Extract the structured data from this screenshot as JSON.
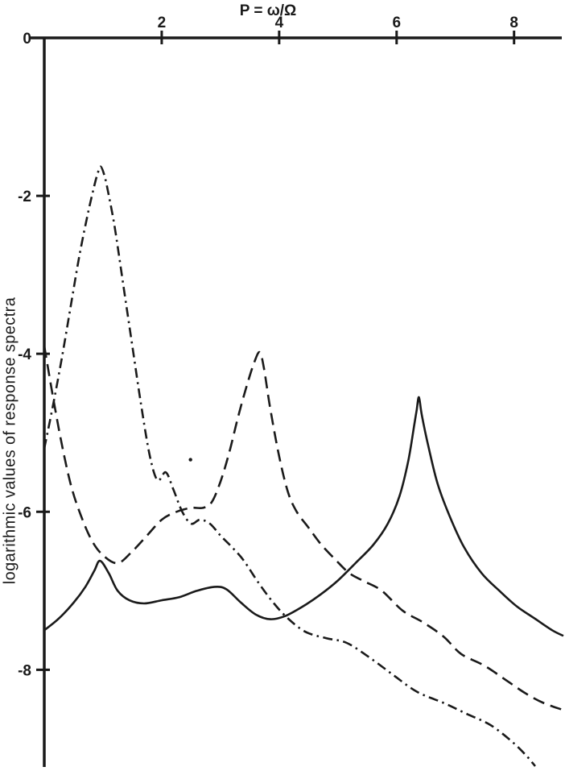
{
  "figure": {
    "background": "#ffffff",
    "ink_color": "#1a1a1a"
  },
  "chart_data": {
    "type": "line",
    "title": "",
    "xlabel": "P = ω/Ω",
    "ylabel": "logarithmic values of response spectra",
    "xlim": [
      0,
      8.84
    ],
    "ylim": [
      0,
      -9.21
    ],
    "x_ticks": [
      2,
      4,
      6,
      8
    ],
    "y_ticks": [
      -2,
      -4,
      -6,
      -8
    ],
    "origin_label": "0",
    "grid": false,
    "legend": "none",
    "series": [
      {
        "name": "solid-curve",
        "style": "solid",
        "points": [
          [
            0,
            -7.5
          ],
          [
            0.25,
            -7.35
          ],
          [
            0.5,
            -7.15
          ],
          [
            0.7,
            -6.95
          ],
          [
            0.85,
            -6.75
          ],
          [
            0.95,
            -6.62
          ],
          [
            1.1,
            -6.78
          ],
          [
            1.25,
            -7.0
          ],
          [
            1.45,
            -7.12
          ],
          [
            1.7,
            -7.16
          ],
          [
            2.0,
            -7.12
          ],
          [
            2.3,
            -7.08
          ],
          [
            2.6,
            -7.0
          ],
          [
            2.9,
            -6.95
          ],
          [
            3.1,
            -6.98
          ],
          [
            3.35,
            -7.15
          ],
          [
            3.6,
            -7.3
          ],
          [
            3.85,
            -7.36
          ],
          [
            4.1,
            -7.32
          ],
          [
            4.4,
            -7.2
          ],
          [
            4.7,
            -7.05
          ],
          [
            5.0,
            -6.87
          ],
          [
            5.3,
            -6.65
          ],
          [
            5.6,
            -6.42
          ],
          [
            5.85,
            -6.15
          ],
          [
            6.05,
            -5.8
          ],
          [
            6.2,
            -5.35
          ],
          [
            6.3,
            -4.9
          ],
          [
            6.34,
            -4.72
          ],
          [
            6.38,
            -4.55
          ],
          [
            6.43,
            -4.78
          ],
          [
            6.55,
            -5.2
          ],
          [
            6.7,
            -5.65
          ],
          [
            6.9,
            -6.05
          ],
          [
            7.15,
            -6.45
          ],
          [
            7.45,
            -6.78
          ],
          [
            7.75,
            -7.0
          ],
          [
            8.05,
            -7.2
          ],
          [
            8.35,
            -7.35
          ],
          [
            8.65,
            -7.5
          ],
          [
            8.84,
            -7.57
          ]
        ]
      },
      {
        "name": "dashed-curve",
        "style": "dashed",
        "points": [
          [
            0,
            -3.9
          ],
          [
            0.15,
            -4.55
          ],
          [
            0.3,
            -5.15
          ],
          [
            0.45,
            -5.65
          ],
          [
            0.6,
            -6.0
          ],
          [
            0.8,
            -6.35
          ],
          [
            1.0,
            -6.55
          ],
          [
            1.25,
            -6.65
          ],
          [
            1.5,
            -6.5
          ],
          [
            1.75,
            -6.3
          ],
          [
            2.0,
            -6.1
          ],
          [
            2.25,
            -6.0
          ],
          [
            2.5,
            -5.95
          ],
          [
            2.7,
            -5.95
          ],
          [
            2.85,
            -5.88
          ],
          [
            3.0,
            -5.62
          ],
          [
            3.15,
            -5.25
          ],
          [
            3.3,
            -4.8
          ],
          [
            3.45,
            -4.4
          ],
          [
            3.58,
            -4.1
          ],
          [
            3.67,
            -3.98
          ],
          [
            3.74,
            -4.18
          ],
          [
            3.85,
            -4.7
          ],
          [
            4.0,
            -5.3
          ],
          [
            4.15,
            -5.75
          ],
          [
            4.3,
            -6.0
          ],
          [
            4.5,
            -6.2
          ],
          [
            4.7,
            -6.4
          ],
          [
            4.95,
            -6.6
          ],
          [
            5.2,
            -6.78
          ],
          [
            5.45,
            -6.88
          ],
          [
            5.75,
            -7.0
          ],
          [
            6.1,
            -7.25
          ],
          [
            6.45,
            -7.4
          ],
          [
            6.8,
            -7.58
          ],
          [
            7.1,
            -7.8
          ],
          [
            7.5,
            -7.95
          ],
          [
            7.9,
            -8.15
          ],
          [
            8.2,
            -8.3
          ],
          [
            8.5,
            -8.42
          ],
          [
            8.8,
            -8.5
          ]
        ]
      },
      {
        "name": "dash-dot-curve",
        "style": "dash-dot",
        "points": [
          [
            0,
            -5.2
          ],
          [
            0.15,
            -4.65
          ],
          [
            0.3,
            -4.05
          ],
          [
            0.45,
            -3.4
          ],
          [
            0.6,
            -2.75
          ],
          [
            0.75,
            -2.2
          ],
          [
            0.85,
            -1.88
          ],
          [
            0.9,
            -1.74
          ],
          [
            0.96,
            -1.63
          ],
          [
            1.03,
            -1.76
          ],
          [
            1.1,
            -2.0
          ],
          [
            1.2,
            -2.4
          ],
          [
            1.35,
            -3.15
          ],
          [
            1.5,
            -3.9
          ],
          [
            1.65,
            -4.65
          ],
          [
            1.8,
            -5.3
          ],
          [
            1.93,
            -5.6
          ],
          [
            2.07,
            -5.5
          ],
          [
            2.2,
            -5.72
          ],
          [
            2.35,
            -6.0
          ],
          [
            2.5,
            -6.15
          ],
          [
            2.65,
            -6.1
          ],
          [
            2.82,
            -6.15
          ],
          [
            3.0,
            -6.3
          ],
          [
            3.2,
            -6.45
          ],
          [
            3.4,
            -6.62
          ],
          [
            3.65,
            -6.9
          ],
          [
            3.9,
            -7.15
          ],
          [
            4.15,
            -7.35
          ],
          [
            4.45,
            -7.52
          ],
          [
            4.8,
            -7.6
          ],
          [
            5.15,
            -7.66
          ],
          [
            5.55,
            -7.85
          ],
          [
            5.95,
            -8.07
          ],
          [
            6.35,
            -8.28
          ],
          [
            6.8,
            -8.42
          ],
          [
            7.2,
            -8.56
          ],
          [
            7.6,
            -8.7
          ],
          [
            7.95,
            -8.9
          ],
          [
            8.2,
            -9.08
          ],
          [
            8.36,
            -9.22
          ]
        ]
      }
    ],
    "annotations": [
      {
        "name": "stray-dot",
        "x": 2.49,
        "y": -5.34
      }
    ]
  }
}
